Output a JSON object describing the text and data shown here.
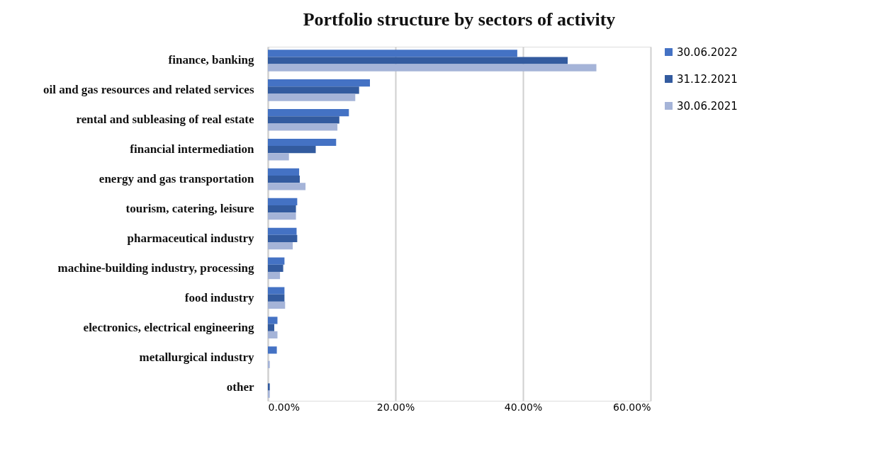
{
  "chart_data": {
    "type": "bar",
    "orientation": "horizontal",
    "title": "Portfolio structure by sectors of activity",
    "categories": [
      "finance, banking",
      "oil and gas resources and related services",
      "rental and subleasing of real estate",
      "financial intermediation",
      "energy and gas transportation",
      "tourism, catering, leisure",
      "pharmaceutical industry",
      "machine-building industry, processing",
      "food industry",
      "electronics, electrical engineering",
      "metallurgical industry",
      "other"
    ],
    "series": [
      {
        "name": "30.06.2022",
        "color": "#4472c4",
        "values": [
          39.1,
          16.0,
          12.7,
          10.7,
          4.9,
          4.6,
          4.5,
          2.6,
          2.6,
          1.5,
          1.4,
          0
        ]
      },
      {
        "name": "31.12.2021",
        "color": "#335b9f",
        "values": [
          47.0,
          14.3,
          11.2,
          7.5,
          5.0,
          4.4,
          4.6,
          2.4,
          2.6,
          1.0,
          0,
          0.3
        ]
      },
      {
        "name": "30.06.2021",
        "color": "#a5b4d8",
        "values": [
          51.5,
          13.7,
          10.9,
          3.3,
          5.9,
          4.4,
          3.9,
          1.9,
          2.7,
          1.5,
          0.3,
          0.3
        ]
      }
    ],
    "xlim": [
      0,
      60
    ],
    "xticks": [
      {
        "value": 0,
        "label": "0.00%"
      },
      {
        "value": 20,
        "label": "20.00%"
      },
      {
        "value": 40,
        "label": "40.00%"
      },
      {
        "value": 60,
        "label": "60.00%"
      }
    ],
    "grid": "x",
    "legend": "right"
  }
}
